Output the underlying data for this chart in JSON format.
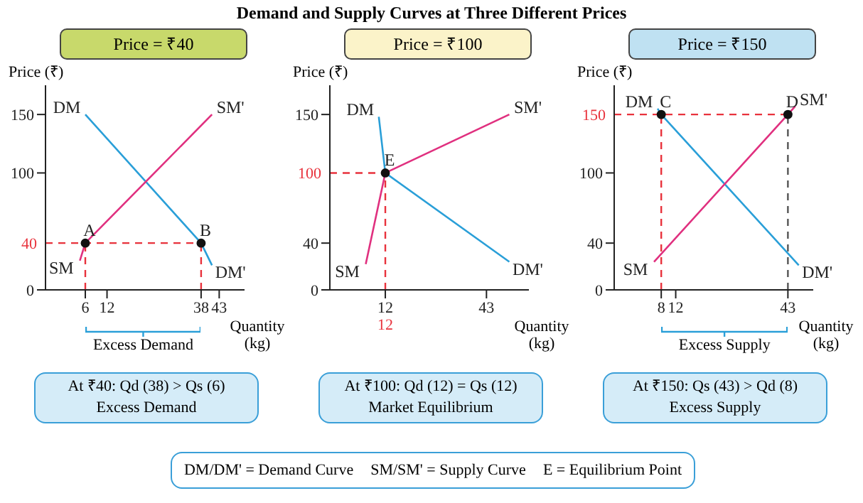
{
  "chart_data": [
    {
      "type": "other",
      "title": "Demand and Supply Curves at Three Different Prices"
    },
    {
      "type": "line",
      "title": "Price = ₹40",
      "ylabel": "Price (₹)",
      "xlabel": "Quantity (kg)",
      "xlim": [
        -5,
        50
      ],
      "ylim": [
        0,
        175
      ],
      "xticks": [
        6,
        12,
        38,
        43
      ],
      "yticks": [
        0,
        100,
        150
      ],
      "series": [
        {
          "color": "#2a9fd8",
          "x": [
            6,
            38,
            41
          ],
          "values": [
            150,
            40,
            21
          ]
        },
        {
          "color": "#e0307f",
          "x": [
            4.5,
            6,
            41
          ],
          "values": [
            25,
            40,
            150
          ]
        },
        {
          "type": "scatter",
          "color": "#111111",
          "marker": "circle",
          "x": [
            6,
            38
          ],
          "values": [
            40,
            40
          ]
        }
      ],
      "ref_lines": [
        {
          "axis": "y",
          "value": 40,
          "label": "40",
          "color": "#e8323c",
          "line_style": "dashed"
        },
        {
          "axis": "x",
          "value": 6,
          "label": null,
          "color": "#e8323c",
          "line_style": "dashed"
        },
        {
          "axis": "x",
          "value": 38,
          "label": null,
          "color": "#e8323c",
          "line_style": "dashed"
        }
      ],
      "annotations": [
        {
          "text": "DM",
          "x": 6,
          "y": 150
        },
        {
          "text": "DM'",
          "x": 41,
          "y": 21
        },
        {
          "text": "SM",
          "x": 4.5,
          "y": 25
        },
        {
          "text": "SM'",
          "x": 41,
          "y": 150
        },
        {
          "text": "A",
          "x": 6,
          "y": 40
        },
        {
          "text": "B",
          "x": 38,
          "y": 40
        },
        "Excess Demand",
        "At ₹40: Qd (38) > Qs (6)",
        "Excess Demand"
      ]
    },
    {
      "type": "line",
      "title": "Price = ₹100",
      "ylabel": "Price (₹)",
      "xlabel": "Quantity (kg)",
      "xlim": [
        -5,
        56
      ],
      "ylim": [
        0,
        175
      ],
      "xticks": [
        12,
        43
      ],
      "yticks": [
        0,
        40,
        150
      ],
      "series": [
        {
          "color": "#2a9fd8",
          "x": [
            10,
            12,
            50
          ],
          "values": [
            148,
            100,
            24
          ]
        },
        {
          "color": "#e0307f",
          "x": [
            6,
            12,
            50
          ],
          "values": [
            22,
            100,
            150
          ]
        },
        {
          "type": "scatter",
          "color": "#111111",
          "marker": "circle",
          "x": [
            12
          ],
          "values": [
            100
          ]
        }
      ],
      "ref_lines": [
        {
          "axis": "y",
          "value": 100,
          "label": "100",
          "color": "#e8323c",
          "line_style": "dashed"
        },
        {
          "axis": "x",
          "value": 12,
          "label": "12",
          "color": "#e8323c",
          "line_style": "dashed"
        }
      ],
      "annotations": [
        {
          "text": "DM",
          "x": 10,
          "y": 148
        },
        {
          "text": "DM'",
          "x": 50,
          "y": 24
        },
        {
          "text": "SM",
          "x": 6,
          "y": 22
        },
        {
          "text": "SM'",
          "x": 50,
          "y": 150
        },
        {
          "text": "E",
          "x": 12,
          "y": 100
        },
        "At ₹100: Qd (12) = Qs (12)",
        "Market Equilibrium"
      ]
    },
    {
      "type": "line",
      "title": "Price = ₹150",
      "ylabel": "Price (₹)",
      "xlabel": "Quantity (kg)",
      "xlim": [
        -5,
        50
      ],
      "ylim": [
        0,
        175
      ],
      "xticks": [
        8,
        12,
        43
      ],
      "yticks": [
        0,
        40,
        100
      ],
      "series": [
        {
          "color": "#2a9fd8",
          "x": [
            7,
            8,
            46
          ],
          "values": [
            155,
            150,
            21
          ]
        },
        {
          "color": "#e0307f",
          "x": [
            6,
            43,
            45
          ],
          "values": [
            24,
            150,
            157
          ]
        },
        {
          "type": "scatter",
          "color": "#111111",
          "marker": "circle",
          "x": [
            8,
            43
          ],
          "values": [
            150,
            150
          ]
        }
      ],
      "ref_lines": [
        {
          "axis": "y",
          "value": 150,
          "label": "150",
          "color": "#e8323c",
          "line_style": "dashed"
        },
        {
          "axis": "x",
          "value": 8,
          "label": null,
          "color": "#e8323c",
          "line_style": "dashed"
        },
        {
          "axis": "x",
          "value": 43,
          "label": null,
          "color": "#555555",
          "line_style": "dashed"
        }
      ],
      "annotations": [
        {
          "text": "DM",
          "x": 7,
          "y": 155
        },
        {
          "text": "DM'",
          "x": 46,
          "y": 21
        },
        {
          "text": "SM",
          "x": 6,
          "y": 24
        },
        {
          "text": "SM'",
          "x": 45,
          "y": 157
        },
        {
          "text": "C",
          "x": 8,
          "y": 150
        },
        {
          "text": "D",
          "x": 43,
          "y": 150
        },
        "Excess Supply",
        "At ₹150: Qs (43) > Qd (8)",
        "Excess Supply"
      ]
    },
    {
      "type": "other",
      "annotations": [
        "DM/DM' = Demand Curve",
        "SM/SM' = Supply Curve",
        "E = Equilibrium Point"
      ]
    }
  ]
}
